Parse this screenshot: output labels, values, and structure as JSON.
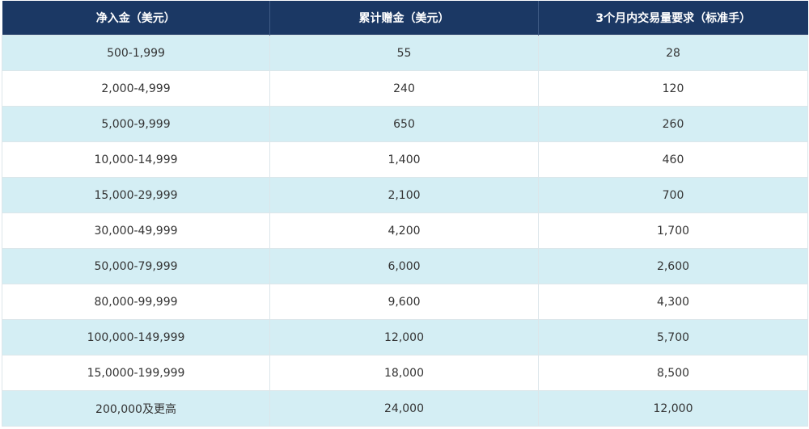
{
  "headers": [
    "净入金（美元）",
    "累计赠金（美元）",
    "3个月内交易量要求（标准手）"
  ],
  "rows": [
    [
      "500-1,999",
      "55",
      "28"
    ],
    [
      "2,000-4,999",
      "240",
      "120"
    ],
    [
      "5,000-9,999",
      "650",
      "260"
    ],
    [
      "10,000-14,999",
      "1,400",
      "460"
    ],
    [
      "15,000-29,999",
      "2,100",
      "700"
    ],
    [
      "30,000-49,999",
      "4,200",
      "1,700"
    ],
    [
      "50,000-79,999",
      "6,000",
      "2,600"
    ],
    [
      "80,000-99,999",
      "9,600",
      "4,300"
    ],
    [
      "100,000-149,999",
      "12,000",
      "5,700"
    ],
    [
      "15,0000-199,999",
      "18,000",
      "8,500"
    ],
    [
      "200,000及更高",
      "24,000",
      "12,000"
    ]
  ],
  "colors": {
    "header_bg": "#1b3864",
    "header_text": "#ffffff",
    "stripe_bg": "#d4eef4",
    "row_bg": "#ffffff",
    "cell_text": "#333333"
  }
}
